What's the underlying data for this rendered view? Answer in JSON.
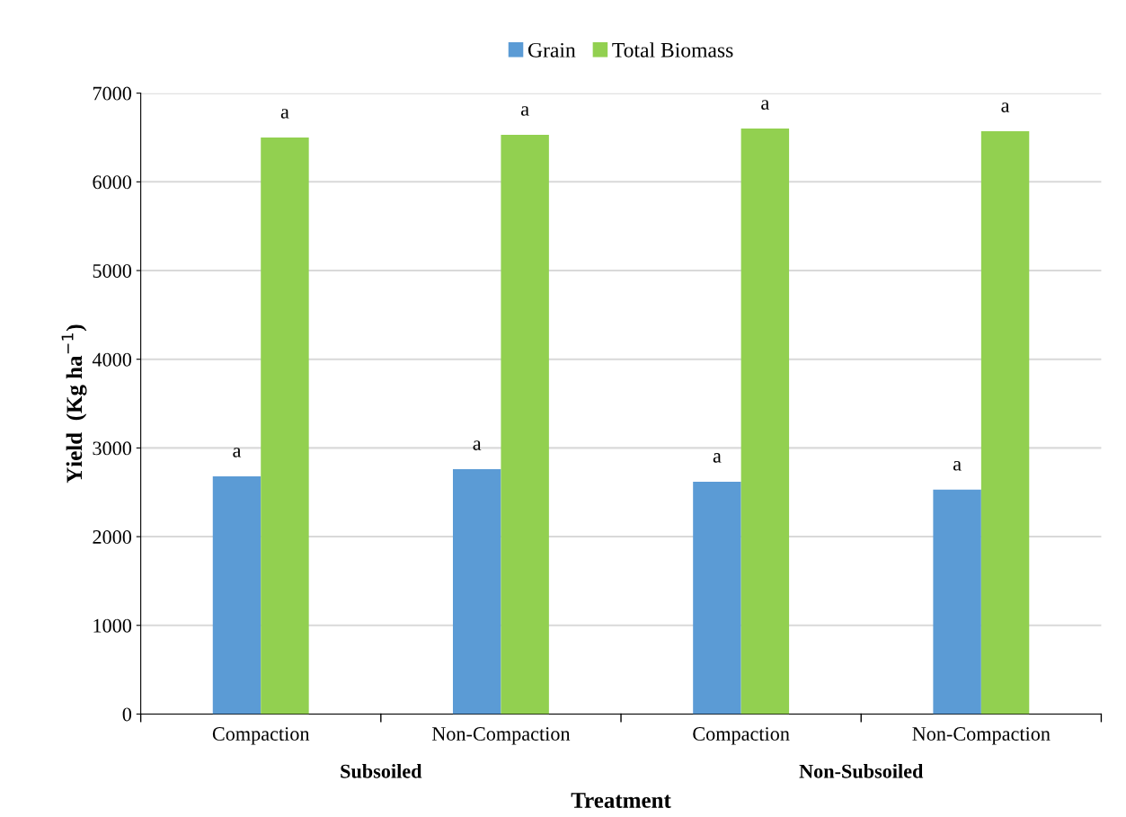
{
  "chart_data": {
    "type": "bar",
    "xlabel": "Treatment",
    "ylabel": "Yield  (Kg ha$^{−1}$)",
    "categories": [
      "Compaction",
      "Non-Compaction",
      "Compaction",
      "Non-Compaction"
    ],
    "series": [
      {
        "name": "Grain",
        "color": "#5b9bd5",
        "values": [
          2680,
          2760,
          2620,
          2530
        ],
        "value_labels": [
          "a",
          "a",
          "a",
          "a"
        ]
      },
      {
        "name": "Total Biomass",
        "color": "#92d050",
        "values": [
          6500,
          6530,
          6600,
          6570
        ],
        "value_labels": [
          "a",
          "a",
          "a",
          "a"
        ]
      }
    ],
    "annotations": [
      "Subsoiled",
      "Non-Subsoiled"
    ],
    "ylim": [
      0,
      7000
    ],
    "yticks": [
      0,
      1000,
      2000,
      3000,
      4000,
      5000,
      6000,
      7000
    ],
    "grid": "y",
    "legend": "top"
  }
}
